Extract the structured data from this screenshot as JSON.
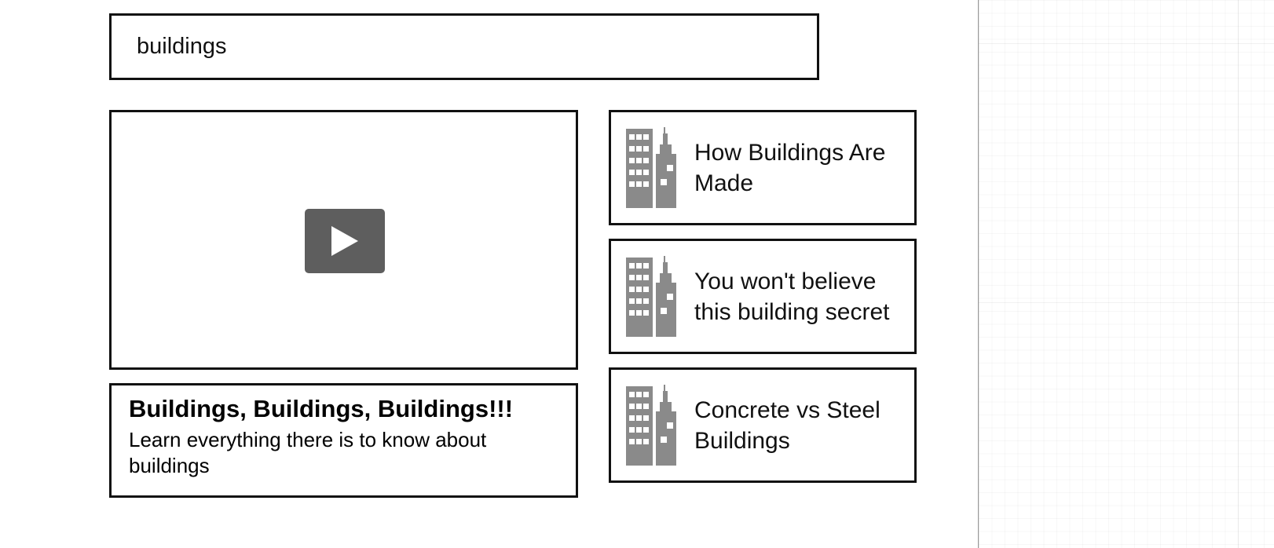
{
  "search": {
    "value": "buildings"
  },
  "video_detail": {
    "title": "Buildings, Buildings, Buildings!!!",
    "description": "Learn everything there is to know about buildings"
  },
  "video_list": [
    {
      "title": "How Buildings Are Made",
      "thumbnail_icon": "buildings-icon"
    },
    {
      "title": "You won't believe this building secret",
      "thumbnail_icon": "buildings-icon"
    },
    {
      "title": "Concrete vs Steel Buildings",
      "thumbnail_icon": "buildings-icon"
    }
  ],
  "icons": {
    "play": "play-icon",
    "thumbnail": "buildings-icon"
  },
  "colors": {
    "border": "#111111",
    "play_button": "#5e5e5e",
    "thumbnail": "#8a8a8a",
    "background": "#ffffff"
  }
}
